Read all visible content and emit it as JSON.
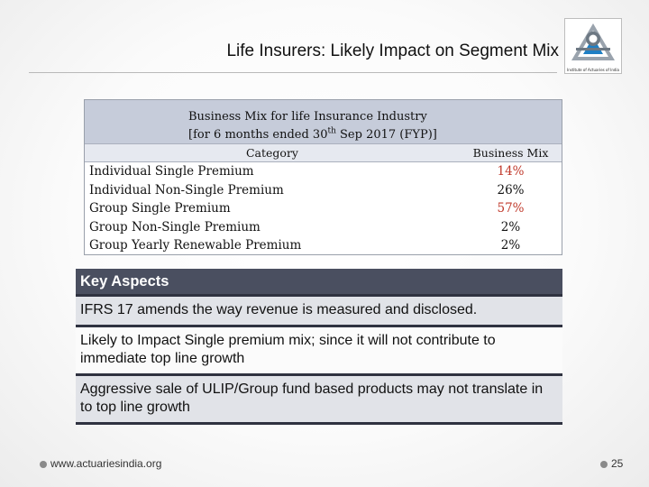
{
  "slide": {
    "title": "Life Insurers: Likely Impact on Segment Mix",
    "logo_caption": "Institute of Actuaries of India",
    "logo_icon": "actuaries-logo-icon"
  },
  "mix_table": {
    "title_line1": "Business Mix for life Insurance Industry",
    "title_line2_pre": "[for 6 months ended 30",
    "title_line2_sup": "th",
    "title_line2_post": " Sep 2017 (FYP)]",
    "col_category": "Category",
    "col_mix": "Business Mix",
    "rows": [
      {
        "category": "Individual Single Premium",
        "mix": "14%",
        "color": "#c0392b"
      },
      {
        "category": "Individual Non-Single Premium",
        "mix": "26%",
        "color": "#111111"
      },
      {
        "category": "Group Single Premium",
        "mix": "57%",
        "color": "#c0392b"
      },
      {
        "category": "Group Non-Single Premium",
        "mix": "2%",
        "color": "#111111"
      },
      {
        "category": "Group Yearly Renewable Premium",
        "mix": "2%",
        "color": "#111111"
      }
    ]
  },
  "aspects": {
    "heading": "Key Aspects",
    "items": [
      "IFRS 17 amends the way revenue is measured and disclosed.",
      "Likely to Impact Single premium mix; since it will not contribute to immediate top line growth",
      "Aggressive sale of ULIP/Group fund based products may not translate in to top line growth"
    ]
  },
  "footer": {
    "website": "www.actuariesindia.org",
    "page_number": "25"
  }
}
